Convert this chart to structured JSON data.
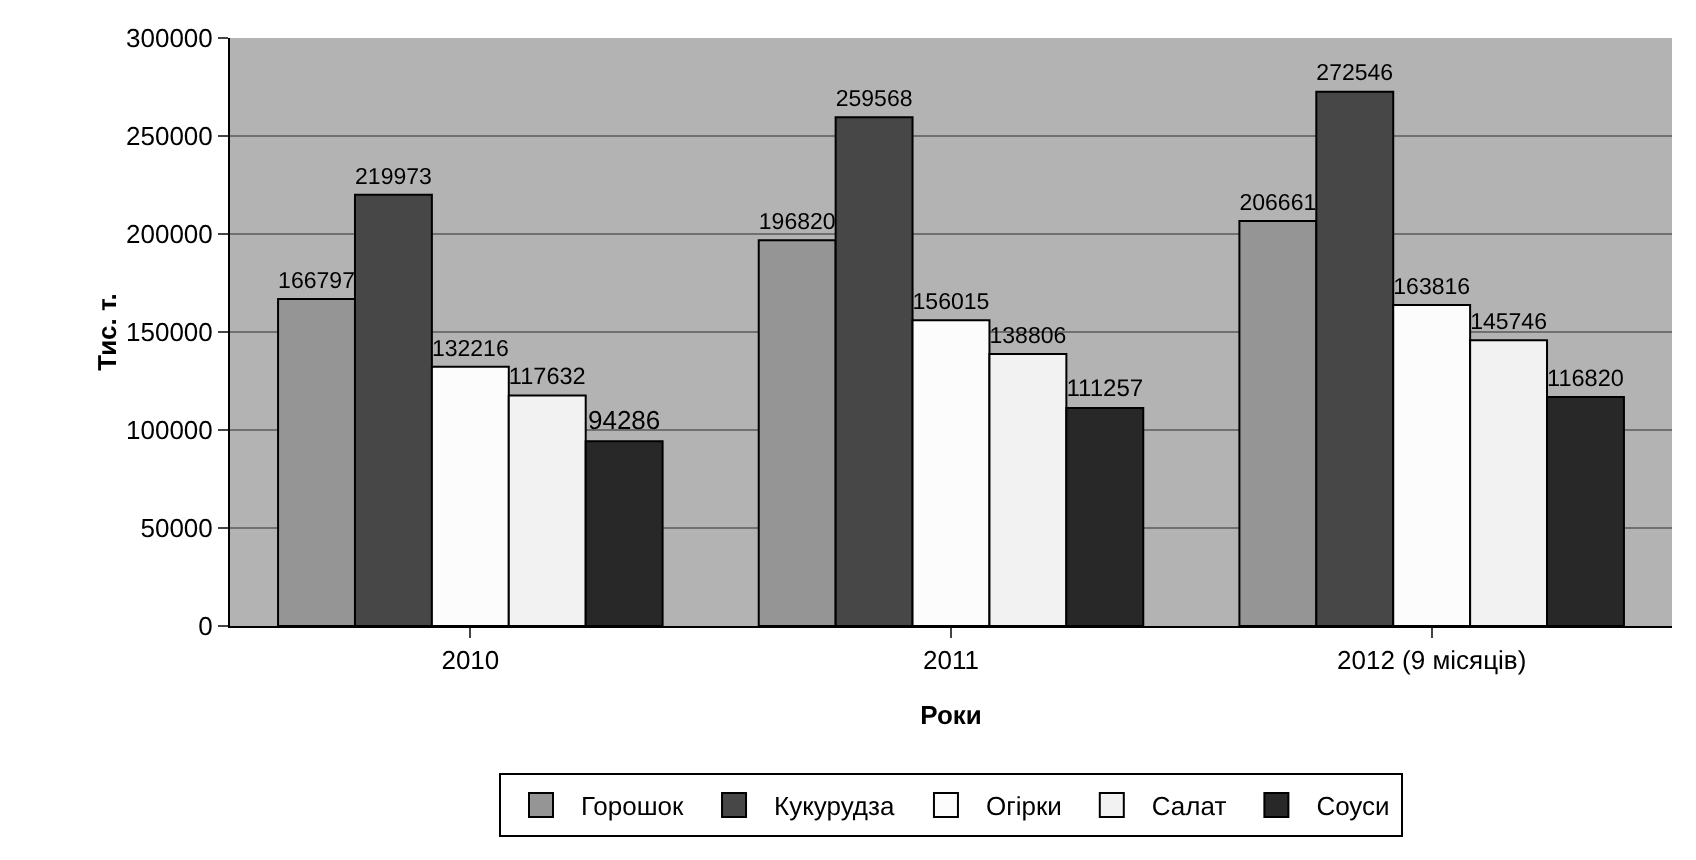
{
  "chart_data": {
    "type": "bar",
    "xlabel": "Роки",
    "ylabel": "Тис. т.",
    "categories": [
      "2010",
      "2011",
      "2012 (9 місяців)"
    ],
    "series": [
      {
        "name": "Горошок",
        "color": "#959595",
        "values": [
          166797,
          196820,
          206661
        ]
      },
      {
        "name": "Кукурудза",
        "color": "#474747",
        "values": [
          219973,
          259568,
          272546
        ]
      },
      {
        "name": "Огірки",
        "color": "#fcfcfc",
        "values": [
          132216,
          156015,
          163816
        ]
      },
      {
        "name": "Салат",
        "color": "#f2f2f2",
        "values": [
          117632,
          138806,
          145746
        ]
      },
      {
        "name": "Соуси",
        "color": "#282828",
        "values": [
          94286,
          111257,
          116820
        ]
      }
    ],
    "ylim": [
      0,
      300000
    ],
    "yticks": [
      0,
      50000,
      100000,
      150000,
      200000,
      250000,
      300000
    ],
    "grid": "y",
    "legend": "bottom",
    "data_labels": true
  }
}
